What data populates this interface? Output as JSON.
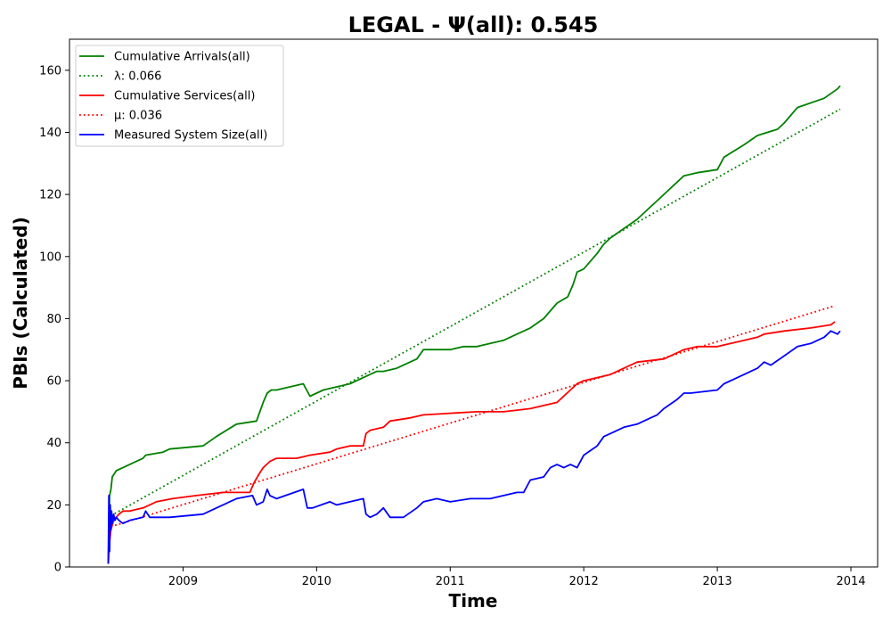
{
  "chart_data": {
    "type": "line",
    "title": "LEGAL -  Ψ(all): 0.545",
    "xlabel": "Time",
    "ylabel": "PBIs (Calculated)",
    "xlim": [
      2008.15,
      2014.2
    ],
    "ylim": [
      0,
      170
    ],
    "xticks": [
      2009,
      2010,
      2011,
      2012,
      2013,
      2014
    ],
    "xtick_labels": [
      "2009",
      "2010",
      "2011",
      "2012",
      "2013",
      "2014"
    ],
    "yticks": [
      0,
      20,
      40,
      60,
      80,
      100,
      120,
      140,
      160
    ],
    "ytick_labels": [
      "0",
      "20",
      "40",
      "60",
      "80",
      "100",
      "120",
      "140",
      "160"
    ],
    "grid": false,
    "legend_position": "top-left",
    "series": [
      {
        "name": "Cumulative Arrivals(all)",
        "color": "#008000",
        "style": "solid",
        "x": [
          2008.44,
          2008.45,
          2008.46,
          2008.47,
          2008.5,
          2008.55,
          2008.6,
          2008.7,
          2008.72,
          2008.85,
          2008.9,
          2009.15,
          2009.25,
          2009.4,
          2009.55,
          2009.6,
          2009.63,
          2009.66,
          2009.7,
          2009.9,
          2009.95,
          2010.05,
          2010.15,
          2010.25,
          2010.3,
          2010.35,
          2010.4,
          2010.45,
          2010.5,
          2010.6,
          2010.65,
          2010.75,
          2010.8,
          2010.9,
          2011.0,
          2011.1,
          2011.2,
          2011.3,
          2011.4,
          2011.5,
          2011.6,
          2011.7,
          2011.8,
          2011.88,
          2011.92,
          2011.95,
          2012.0,
          2012.1,
          2012.15,
          2012.2,
          2012.3,
          2012.4,
          2012.5,
          2012.55,
          2012.6,
          2012.7,
          2012.75,
          2012.85,
          2013.0,
          2013.05,
          2013.2,
          2013.3,
          2013.45,
          2013.5,
          2013.6,
          2013.8,
          2013.9,
          2013.92
        ],
        "y": [
          1,
          23,
          25,
          29,
          31,
          32,
          33,
          35,
          36,
          37,
          38,
          39,
          42,
          46,
          47,
          53,
          56,
          57,
          57,
          59,
          55,
          57,
          58,
          59,
          60,
          61,
          62,
          63,
          63,
          64,
          65,
          67,
          70,
          70,
          70,
          71,
          71,
          72,
          73,
          75,
          77,
          80,
          85,
          87,
          91,
          95,
          96,
          101,
          104,
          106,
          109,
          112,
          116,
          118,
          120,
          124,
          126,
          127,
          128,
          132,
          136,
          139,
          141,
          143,
          148,
          151,
          154,
          155
        ]
      },
      {
        "name": "λ: 0.066",
        "color": "#008000",
        "style": "dotted",
        "x": [
          2008.46,
          2013.92
        ],
        "y": [
          16.5,
          147.5
        ]
      },
      {
        "name": "Cumulative Services(all)",
        "color": "#ff0000",
        "style": "solid",
        "x": [
          2008.44,
          2008.45,
          2008.46,
          2008.48,
          2008.5,
          2008.52,
          2008.55,
          2008.6,
          2008.7,
          2008.75,
          2008.8,
          2008.92,
          2009.1,
          2009.3,
          2009.5,
          2009.53,
          2009.57,
          2009.6,
          2009.65,
          2009.7,
          2009.85,
          2009.95,
          2010.1,
          2010.15,
          2010.25,
          2010.35,
          2010.37,
          2010.4,
          2010.5,
          2010.55,
          2010.7,
          2010.8,
          2011.0,
          2011.2,
          2011.4,
          2011.6,
          2011.7,
          2011.8,
          2011.9,
          2011.95,
          2012.0,
          2012.2,
          2012.3,
          2012.4,
          2012.6,
          2012.7,
          2012.75,
          2012.85,
          2013.0,
          2013.1,
          2013.3,
          2013.35,
          2013.5,
          2013.7,
          2013.85,
          2013.88
        ],
        "y": [
          1,
          8,
          12,
          15,
          16,
          17,
          18,
          18,
          19,
          20,
          21,
          22,
          23,
          24,
          24,
          27,
          30,
          32,
          34,
          35,
          35,
          36,
          37,
          38,
          39,
          39,
          43,
          44,
          45,
          47,
          48,
          49,
          49.5,
          50,
          50,
          51,
          52,
          53,
          57,
          59,
          60,
          62,
          64,
          66,
          67,
          69,
          70,
          71,
          71,
          72,
          74,
          75,
          76,
          77,
          78,
          79
        ]
      },
      {
        "name": "μ: 0.036",
        "color": "#ff0000",
        "style": "dotted",
        "x": [
          2008.46,
          2013.87
        ],
        "y": [
          13.0,
          84.0
        ]
      },
      {
        "name": "Measured System Size(all)",
        "color": "#0000ff",
        "style": "solid",
        "x": [
          2008.44,
          2008.445,
          2008.45,
          2008.455,
          2008.46,
          2008.465,
          2008.47,
          2008.48,
          2008.49,
          2008.5,
          2008.52,
          2008.55,
          2008.6,
          2008.7,
          2008.72,
          2008.75,
          2008.9,
          2009.15,
          2009.25,
          2009.4,
          2009.52,
          2009.55,
          2009.6,
          2009.63,
          2009.65,
          2009.7,
          2009.9,
          2009.93,
          2009.97,
          2010.1,
          2010.15,
          2010.25,
          2010.35,
          2010.37,
          2010.4,
          2010.45,
          2010.5,
          2010.55,
          2010.65,
          2010.75,
          2010.8,
          2010.9,
          2011.0,
          2011.15,
          2011.3,
          2011.4,
          2011.5,
          2011.55,
          2011.6,
          2011.7,
          2011.75,
          2011.8,
          2011.85,
          2011.9,
          2011.95,
          2012.0,
          2012.1,
          2012.15,
          2012.2,
          2012.3,
          2012.4,
          2012.45,
          2012.5,
          2012.55,
          2012.6,
          2012.7,
          2012.75,
          2012.8,
          2013.0,
          2013.05,
          2013.15,
          2013.2,
          2013.3,
          2013.35,
          2013.4,
          2013.5,
          2013.6,
          2013.7,
          2013.8,
          2013.85,
          2013.9,
          2013.92
        ],
        "y": [
          1,
          23,
          5,
          20,
          12,
          18,
          14,
          17,
          15,
          16,
          15,
          14,
          15,
          16,
          18,
          16,
          16,
          17,
          19,
          22,
          23,
          20,
          21,
          25,
          23,
          22,
          25,
          19,
          19,
          21,
          20,
          21,
          22,
          17,
          16,
          17,
          19,
          16,
          16,
          19,
          21,
          22,
          21,
          22,
          22,
          23,
          24,
          24,
          28,
          29,
          32,
          33,
          32,
          33,
          32,
          36,
          39,
          42,
          43,
          45,
          46,
          47,
          48,
          49,
          51,
          54,
          56,
          56,
          57,
          59,
          61,
          62,
          64,
          66,
          65,
          68,
          71,
          72,
          74,
          76,
          75,
          76
        ]
      }
    ]
  }
}
